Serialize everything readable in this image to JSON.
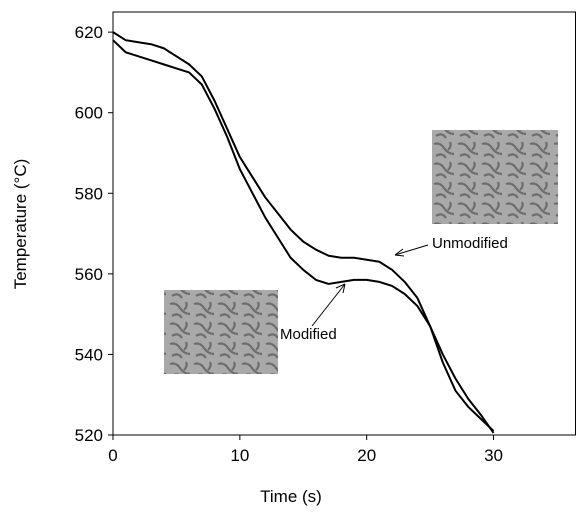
{
  "chart_data": {
    "type": "line",
    "x_label": "Time (s)",
    "y_label": "Temperature (°C)",
    "x": [
      0,
      1,
      2,
      3,
      4,
      5,
      6,
      7,
      8,
      9,
      10,
      11,
      12,
      13,
      14,
      15,
      16,
      17,
      18,
      19,
      20,
      21,
      22,
      23,
      24,
      25,
      26,
      27,
      28,
      29,
      30
    ],
    "series": [
      {
        "name": "Unmodified",
        "color": "#000000",
        "values": [
          620,
          618,
          617.5,
          617,
          616,
          614,
          612,
          609,
          603,
          596,
          589,
          584,
          579,
          575,
          571,
          568,
          566,
          564.5,
          564,
          564,
          563.5,
          563,
          561,
          558,
          554,
          547,
          538,
          531,
          527,
          524,
          521
        ]
      },
      {
        "name": "Modified",
        "color": "#000000",
        "values": [
          618,
          615,
          614,
          613,
          612,
          611,
          610,
          607,
          601,
          594,
          586,
          580,
          574,
          569,
          564,
          561,
          558.5,
          557.5,
          558,
          558.5,
          558.5,
          558,
          557,
          555,
          552,
          547,
          540,
          534,
          529,
          525,
          520.5
        ]
      }
    ],
    "xlim": [
      0,
      36.5
    ],
    "xticks": [
      0,
      10,
      20,
      30
    ],
    "ylim": [
      520,
      625
    ],
    "yticks": [
      520,
      540,
      560,
      580,
      600,
      620
    ]
  }
}
